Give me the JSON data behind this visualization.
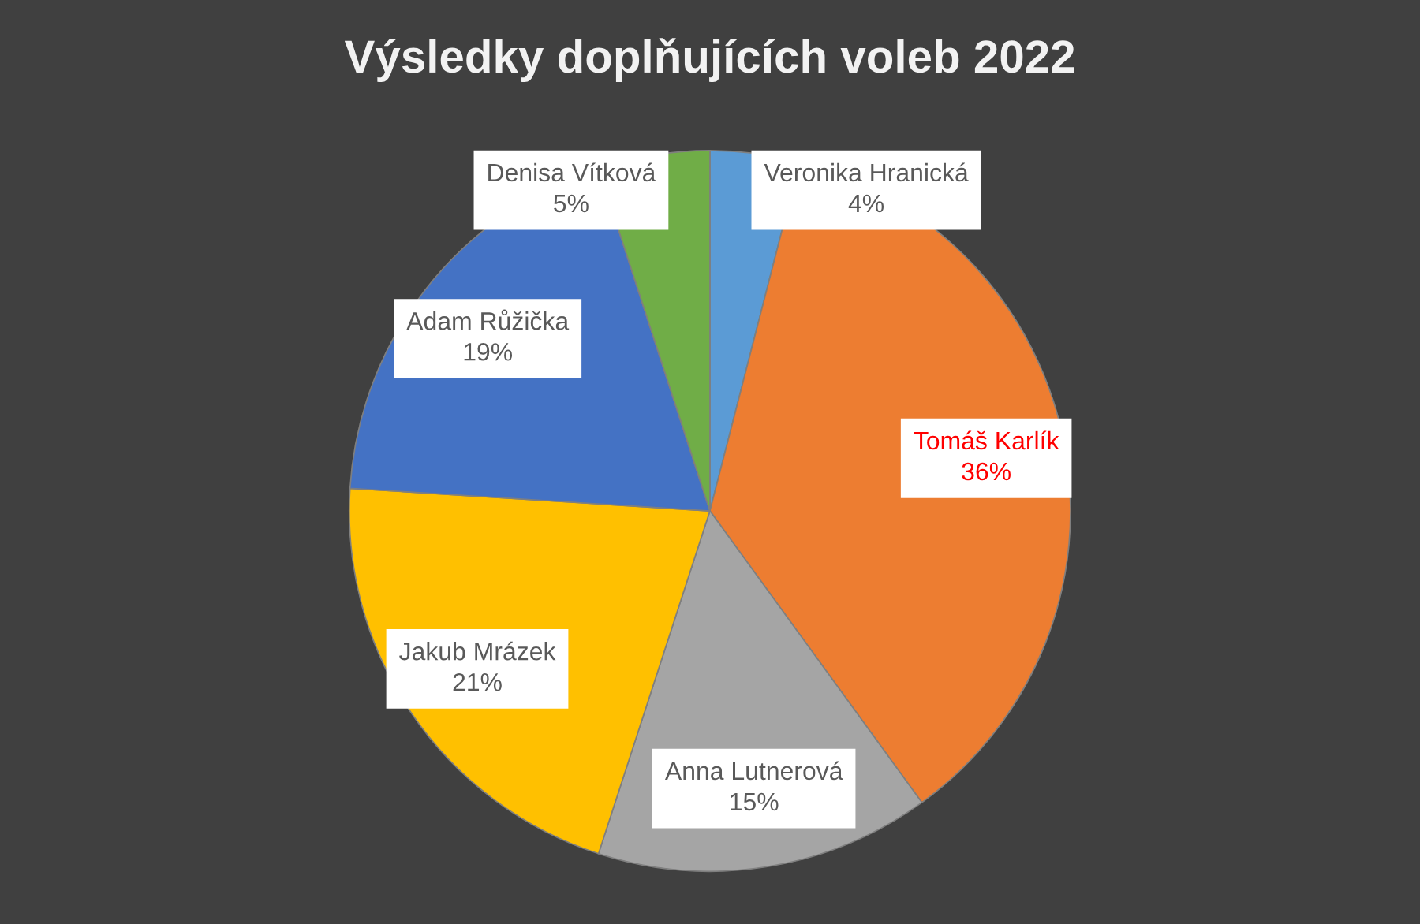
{
  "chart_data": {
    "type": "pie",
    "title": "Výsledky doplňujících voleb 2022",
    "categories": [
      "Veronika Hranická",
      "Tomáš Karlík",
      "Anna Lutnerová",
      "Jakub Mrázek",
      "Adam Růžička",
      "Denisa Vítková"
    ],
    "values": [
      4,
      36,
      15,
      21,
      19,
      5
    ],
    "value_labels": [
      "4%",
      "36%",
      "15%",
      "21%",
      "19%",
      "5%"
    ],
    "colors": [
      "#5b9bd5",
      "#ed7d31",
      "#a5a5a5",
      "#ffc000",
      "#4472c4",
      "#70ad47"
    ]
  }
}
